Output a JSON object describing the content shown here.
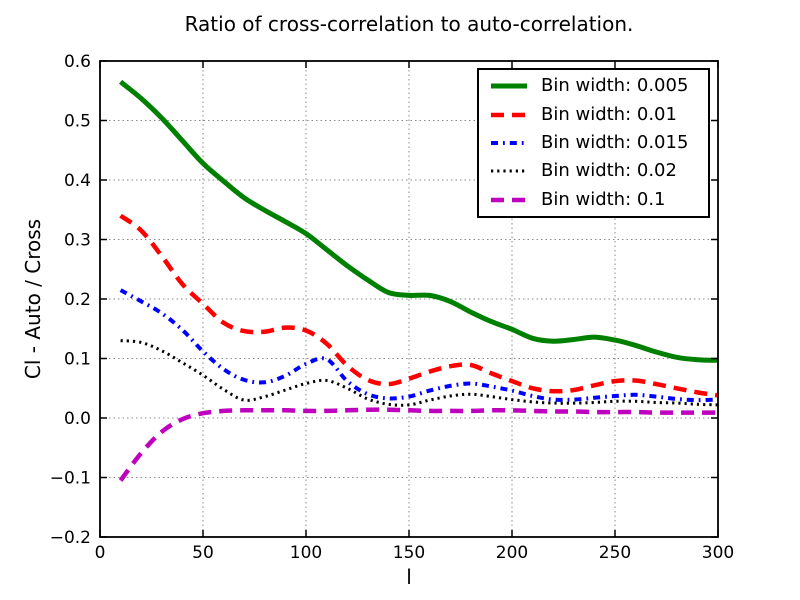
{
  "chart_data": {
    "type": "line",
    "title": "Ratio of cross-correlation to auto-correlation.",
    "xlabel": "l",
    "ylabel": "Cl - Auto / Cross",
    "xlim": [
      0,
      300
    ],
    "ylim": [
      -0.2,
      0.6
    ],
    "xticks": [
      0,
      50,
      100,
      150,
      200,
      250,
      300
    ],
    "yticks": [
      -0.2,
      -0.1,
      0.0,
      0.1,
      0.2,
      0.3,
      0.4,
      0.5,
      0.6
    ],
    "grid": true,
    "grid_style": "dotted",
    "legend_position": "upper right",
    "background": "#ffffff",
    "x": [
      10,
      20,
      30,
      40,
      50,
      60,
      70,
      80,
      90,
      100,
      110,
      120,
      130,
      140,
      150,
      160,
      170,
      180,
      190,
      200,
      210,
      220,
      230,
      240,
      250,
      260,
      270,
      280,
      290,
      300
    ],
    "series": [
      {
        "label": "Bin width: 0.005",
        "color": "#008000",
        "style": "solid",
        "linewidth": 5,
        "values": [
          0.565,
          0.537,
          0.504,
          0.466,
          0.428,
          0.398,
          0.37,
          0.349,
          0.33,
          0.31,
          0.283,
          0.256,
          0.232,
          0.211,
          0.206,
          0.206,
          0.196,
          0.178,
          0.162,
          0.149,
          0.134,
          0.129,
          0.132,
          0.136,
          0.131,
          0.122,
          0.111,
          0.102,
          0.098,
          0.097
        ]
      },
      {
        "label": "Bin width: 0.01",
        "color": "#ff0000",
        "style": "dashed",
        "linewidth": 4.5,
        "values": [
          0.34,
          0.315,
          0.272,
          0.225,
          0.192,
          0.16,
          0.146,
          0.145,
          0.152,
          0.147,
          0.125,
          0.088,
          0.064,
          0.057,
          0.066,
          0.078,
          0.087,
          0.089,
          0.075,
          0.062,
          0.05,
          0.045,
          0.047,
          0.055,
          0.062,
          0.063,
          0.057,
          0.05,
          0.043,
          0.038
        ]
      },
      {
        "label": "Bin width: 0.015",
        "color": "#0000ff",
        "style": "dashdot",
        "linewidth": 4,
        "values": [
          0.215,
          0.196,
          0.176,
          0.148,
          0.112,
          0.082,
          0.064,
          0.06,
          0.071,
          0.091,
          0.099,
          0.062,
          0.04,
          0.033,
          0.036,
          0.046,
          0.054,
          0.058,
          0.053,
          0.046,
          0.037,
          0.031,
          0.031,
          0.034,
          0.037,
          0.039,
          0.036,
          0.032,
          0.03,
          0.031
        ]
      },
      {
        "label": "Bin width: 0.02",
        "color": "#000000",
        "style": "dotted",
        "linewidth": 3,
        "values": [
          0.13,
          0.127,
          0.113,
          0.093,
          0.072,
          0.048,
          0.03,
          0.036,
          0.047,
          0.058,
          0.063,
          0.05,
          0.032,
          0.023,
          0.022,
          0.03,
          0.037,
          0.04,
          0.036,
          0.031,
          0.027,
          0.025,
          0.025,
          0.026,
          0.028,
          0.028,
          0.026,
          0.025,
          0.023,
          0.022
        ]
      },
      {
        "label": "Bin width: 0.1",
        "color": "#bf00bf",
        "style": "dashed",
        "linewidth": 4.5,
        "values": [
          -0.105,
          -0.059,
          -0.023,
          -0.002,
          0.008,
          0.012,
          0.013,
          0.013,
          0.013,
          0.012,
          0.012,
          0.013,
          0.014,
          0.014,
          0.013,
          0.012,
          0.012,
          0.012,
          0.013,
          0.013,
          0.012,
          0.011,
          0.011,
          0.01,
          0.01,
          0.01,
          0.009,
          0.009,
          0.009,
          0.009
        ]
      }
    ]
  }
}
